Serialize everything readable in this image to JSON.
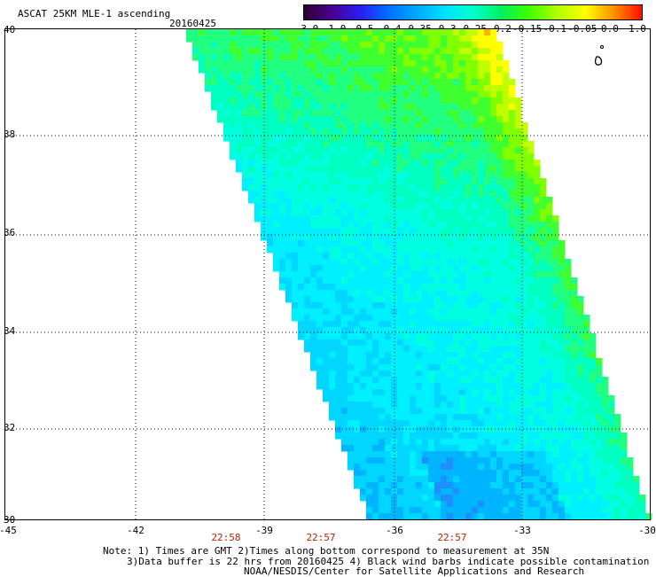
{
  "header": {
    "title": "ASCAT 25KM MLE-1 ascending",
    "date": "20160425"
  },
  "colorbar": {
    "labels": [
      "-3.0",
      "-1.0",
      "-0.5",
      "-0.4",
      "-0.35",
      "-0.3",
      "-0.25",
      "-0.2",
      "-0.15",
      "-0.1",
      "-0.05",
      "0.0",
      "1.0"
    ],
    "colors": [
      "#2a0030",
      "#4b0090",
      "#2a1ef0",
      "#0070ff",
      "#00a8ff",
      "#00e0ff",
      "#00ffd0",
      "#00f060",
      "#40ff00",
      "#b0ff00",
      "#ffff00",
      "#ff9000",
      "#ff1000"
    ]
  },
  "axes": {
    "y_labels": [
      "40",
      "38",
      "36",
      "34",
      "32",
      "30"
    ],
    "x_labels": [
      "-45",
      "-42",
      "-39",
      "-36",
      "-33",
      "-30"
    ]
  },
  "times": [
    "22:58",
    "22:57",
    "22:57"
  ],
  "notes": {
    "line1": "Note: 1) Times are GMT 2)Times along bottom correspond to measurement at 35N",
    "line2": "3)Data buffer is 22 hrs from 20160425 4) Black wind barbs indicate possible contamination",
    "line3": "NOAA/NESDIS/Center for Satellite Applications and Research"
  }
}
